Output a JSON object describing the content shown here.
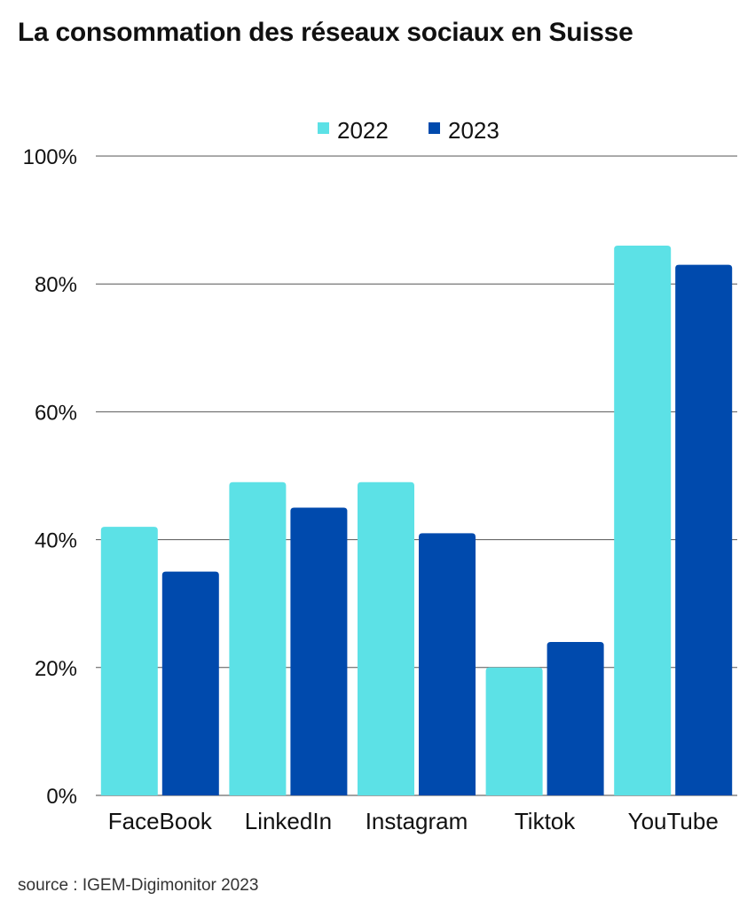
{
  "chart_data": {
    "type": "bar",
    "title": "La consommation des réseaux sociaux en Suisse",
    "source": "source : IGEM-Digimonitor 2023",
    "categories": [
      "FaceBook",
      "LinkedIn",
      "Instagram",
      "Tiktok",
      "YouTube"
    ],
    "series": [
      {
        "name": "2022",
        "color": "#5ce1e6",
        "values": [
          42,
          49,
          49,
          20,
          86
        ]
      },
      {
        "name": "2023",
        "color": "#004aad",
        "values": [
          35,
          45,
          41,
          24,
          83
        ]
      }
    ],
    "yticks": [
      "0%",
      "20%",
      "40%",
      "60%",
      "80%",
      "100%"
    ],
    "ylim": [
      0,
      100
    ],
    "grid": true,
    "legend_position": "top-center"
  }
}
